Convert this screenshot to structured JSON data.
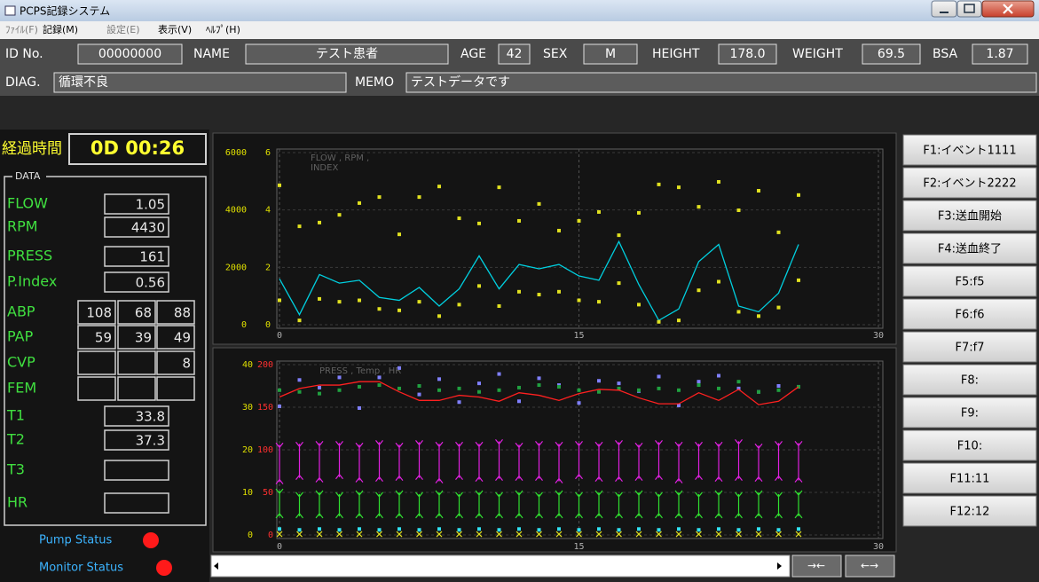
{
  "window": {
    "title": "PCPS記録システム"
  },
  "menu": [
    "ﾌｧｲﾙ(F)",
    "記録(M)",
    "設定(E)",
    "表示(V)",
    "ﾍﾙﾌﾟ(H)"
  ],
  "patient": [
    {
      "label": "ID No.",
      "value": "00000000"
    },
    {
      "label": "NAME",
      "value": "テスト患者"
    },
    {
      "label": "AGE",
      "value": "42"
    },
    {
      "label": "SEX",
      "value": "M"
    },
    {
      "label": "HEIGHT",
      "value": "178.0"
    },
    {
      "label": "WEIGHT",
      "value": "69.5"
    },
    {
      "label": "BSA",
      "value": "1.87"
    }
  ],
  "diag": {
    "label": "DIAG.",
    "value": "循環不良"
  },
  "memo": {
    "label": "MEMO",
    "value": "テストデータです"
  },
  "elapsed": {
    "label": "経過時間",
    "value": "0D 00:26"
  },
  "data_panel": {
    "title": "DATA",
    "rows": [
      {
        "label": "FLOW",
        "cells": [
          "1.05"
        ]
      },
      {
        "label": "RPM",
        "cells": [
          "4430"
        ]
      },
      {
        "label": "PRESS",
        "cells": [
          "161"
        ]
      },
      {
        "label": "P.Index",
        "cells": [
          "0.56"
        ]
      },
      {
        "label": "ABP",
        "cells": [
          "108",
          "68",
          "88"
        ]
      },
      {
        "label": "PAP",
        "cells": [
          "59",
          "39",
          "49"
        ]
      },
      {
        "label": "CVP",
        "cells": [
          null,
          null,
          "8"
        ]
      },
      {
        "label": "FEM",
        "cells": [
          null,
          null,
          null
        ]
      },
      {
        "label": "T1",
        "cells": [
          "33.8"
        ]
      },
      {
        "label": "T2",
        "cells": [
          "37.3"
        ]
      },
      {
        "label": "T3",
        "cells": [
          null
        ]
      },
      {
        "label": "HR",
        "cells": [
          null
        ]
      }
    ]
  },
  "status": [
    "Pump Status",
    "Monitor Status"
  ],
  "buttons": [
    "F1:イベント1111",
    "F2:イベント2222",
    "F3:送血開始",
    "F4:送血終了",
    "F5:f5",
    "F6:f6",
    "F7:f7",
    "F8:",
    "F9:",
    "F10:",
    "F11:11",
    "F12:12"
  ],
  "scroll_buttons": [
    "→←",
    "←→"
  ],
  "chart_data": [
    {
      "type": "line",
      "annotation": [
        "FLOW , RPM ,",
        "INDEX"
      ],
      "x": [
        0,
        1,
        2,
        3,
        4,
        5,
        6,
        7,
        8,
        9,
        10,
        11,
        12,
        13,
        14,
        15,
        16,
        17,
        18,
        19,
        20,
        21,
        22,
        23,
        24,
        25,
        26
      ],
      "xlim": [
        0,
        30
      ],
      "xticks": [
        0,
        15,
        30
      ],
      "ylim": [
        0,
        6
      ],
      "yticks": [
        0,
        2,
        4,
        6
      ],
      "y2lim": [
        0,
        6000
      ],
      "y2ticks": [
        0,
        2000,
        4000,
        6000
      ],
      "grid": true,
      "series": [
        {
          "type": "line",
          "color": "#00d0e0",
          "values": [
            1.6,
            0.35,
            1.75,
            1.45,
            1.55,
            0.95,
            0.85,
            1.3,
            0.65,
            1.25,
            2.4,
            1.25,
            2.1,
            1.95,
            2.1,
            1.7,
            1.55,
            2.9,
            1.4,
            0.15,
            0.55,
            2.2,
            2.8,
            0.65,
            0.45,
            1.1,
            2.8
          ]
        },
        {
          "type": "scatter",
          "axis": "y2",
          "color": "#e0e020",
          "values": [
            4860,
            3430,
            3560,
            3830,
            4240,
            4450,
            3150,
            4450,
            4820,
            3710,
            3530,
            4790,
            3620,
            4210,
            3280,
            3620,
            3930,
            3120,
            3900,
            4890,
            4790,
            4110,
            4980,
            3990,
            4670,
            3220,
            4520
          ]
        },
        {
          "type": "scatter",
          "color": "#e0e020",
          "values": [
            0.85,
            0.15,
            0.9,
            0.8,
            0.85,
            0.55,
            0.5,
            0.8,
            0.3,
            0.7,
            1.35,
            0.65,
            1.15,
            1.05,
            1.15,
            0.85,
            0.8,
            1.45,
            0.7,
            0.1,
            0.15,
            1.2,
            1.5,
            0.45,
            0.3,
            0.6,
            1.55
          ]
        }
      ]
    },
    {
      "type": "line",
      "annotation": [
        "PRESS , Temp , HR"
      ],
      "x": [
        0,
        1,
        2,
        3,
        4,
        5,
        6,
        7,
        8,
        9,
        10,
        11,
        12,
        13,
        14,
        15,
        16,
        17,
        18,
        19,
        20,
        21,
        22,
        23,
        24,
        25,
        26
      ],
      "xlim": [
        0,
        30
      ],
      "xticks": [
        0,
        15,
        30
      ],
      "ylim": [
        0,
        200
      ],
      "yticks": [
        0,
        50,
        100,
        150,
        200
      ],
      "y2lim": [
        0,
        40
      ],
      "y2ticks": [
        0,
        10,
        20,
        30,
        40
      ],
      "grid": true,
      "series": [
        {
          "type": "errorbar",
          "color": "#e020e0",
          "values": [
            84,
            87,
            86,
            88,
            85,
            87,
            86,
            88,
            85,
            87,
            86,
            88,
            86,
            87,
            85,
            88,
            86,
            87,
            86,
            88,
            85,
            87,
            86,
            88,
            85,
            87,
            86
          ],
          "errors": [
            22,
            20,
            22,
            20,
            21,
            22,
            20,
            21,
            22,
            20,
            21,
            22,
            20,
            21,
            22,
            20,
            21,
            22,
            20,
            21,
            22,
            20,
            21,
            22,
            20,
            21,
            22
          ]
        },
        {
          "type": "errorbar",
          "color": "#30e030",
          "values": [
            37,
            35,
            36,
            35,
            36,
            35,
            36,
            35,
            36,
            35,
            36,
            35,
            36,
            35,
            36,
            35,
            36,
            35,
            36,
            35,
            36,
            35,
            36,
            35,
            36,
            35,
            36
          ],
          "errors": [
            15,
            13,
            14,
            13,
            14,
            13,
            14,
            13,
            14,
            13,
            14,
            13,
            14,
            13,
            14,
            13,
            14,
            13,
            14,
            13,
            14,
            13,
            14,
            13,
            14,
            13,
            14
          ]
        },
        {
          "type": "scatter",
          "color": "#8080ff",
          "values": [
            151,
            182,
            173,
            185,
            149,
            185,
            196,
            165,
            183,
            156,
            178,
            189,
            157,
            184,
            176,
            155,
            181,
            178,
            169,
            186,
            152,
            180,
            187,
            172,
            168,
            175,
            174
          ]
        },
        {
          "type": "scatter",
          "color": "#20a040",
          "values": [
            170,
            168,
            166,
            170,
            174,
            176,
            172,
            175,
            170,
            172,
            168,
            170,
            173,
            176,
            174,
            170,
            168,
            172,
            170,
            172,
            170,
            176,
            172,
            180,
            168,
            170,
            174
          ]
        },
        {
          "type": "line",
          "color": "#ff2020",
          "values": [
            162,
            172,
            176,
            176,
            180,
            180,
            168,
            158,
            158,
            164,
            162,
            157,
            167,
            164,
            158,
            166,
            171,
            170,
            161,
            154,
            154,
            167,
            158,
            171,
            153,
            157,
            174
          ]
        },
        {
          "type": "scatter",
          "color": "#30e0f0",
          "values": [
            7,
            6,
            7,
            6,
            7,
            6,
            7,
            6,
            7,
            6,
            7,
            6,
            7,
            6,
            7,
            6,
            7,
            6,
            7,
            6,
            7,
            6,
            7,
            6,
            7,
            6,
            7
          ]
        },
        {
          "type": "cross",
          "color": "#e0e020",
          "values": [
            1,
            1,
            1,
            1,
            1,
            1,
            1,
            1,
            1,
            1,
            1,
            1,
            1,
            1,
            1,
            1,
            1,
            1,
            1,
            1,
            1,
            1,
            1,
            1,
            1,
            1,
            1
          ]
        }
      ]
    }
  ]
}
